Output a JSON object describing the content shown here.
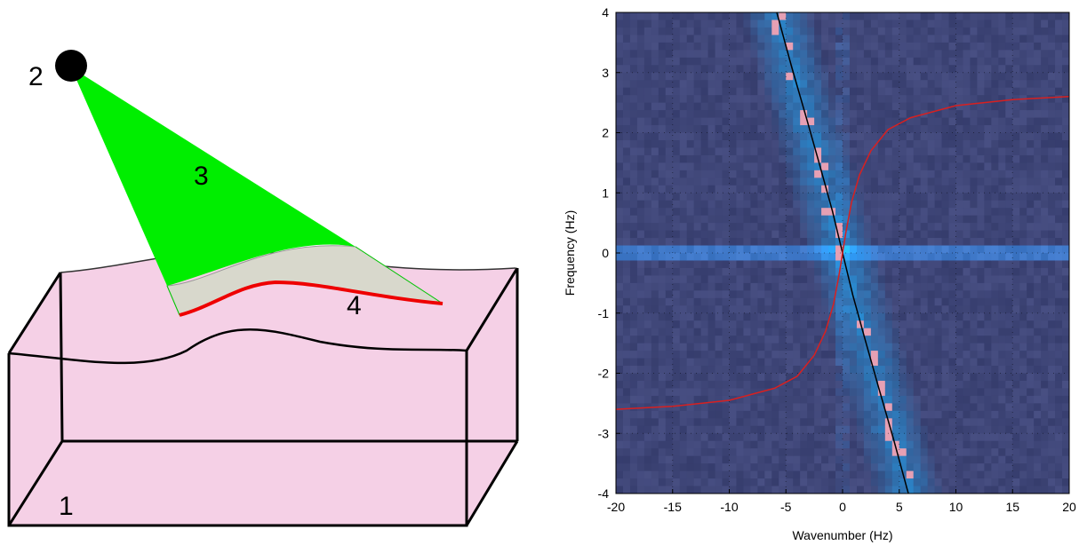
{
  "diagram": {
    "labels": {
      "block": "1",
      "light_source": "2",
      "light_sheet": "3",
      "profile_line": "4"
    },
    "colors": {
      "block_fill": "#f5d0e6",
      "light_sheet": "#00ee00",
      "lit_surface": "#d8d8cc",
      "profile": "#ee0000",
      "source": "#000000"
    }
  },
  "chart_data": {
    "type": "heatmap",
    "title": "",
    "xlabel": "Wavenumber (Hz)",
    "ylabel": "Frequency (Hz)",
    "xlim": [
      -20,
      20
    ],
    "ylim": [
      -4,
      4
    ],
    "xticks": [
      "-20",
      "-15",
      "-10",
      "-5",
      "0",
      "5",
      "10",
      "15",
      "20"
    ],
    "yticks": [
      "-4",
      "-3",
      "-2",
      "-1",
      "0",
      "1",
      "2",
      "3",
      "4"
    ],
    "grid": true,
    "colors": {
      "background": "#3f4678",
      "ridge": "#2a8fd6",
      "hot": "#e8a0b0",
      "black_curve": "#000000",
      "red_curve": "#d82020"
    },
    "curves": [
      {
        "color": "black",
        "x": [
          -5.8,
          -4.5,
          -3.2,
          -2.0,
          -0.9,
          0.0,
          0.9,
          2.0,
          3.2,
          4.5,
          5.8
        ],
        "y": [
          4.0,
          3.1,
          2.25,
          1.45,
          0.7,
          0.0,
          -0.7,
          -1.45,
          -2.25,
          -3.1,
          -4.0
        ]
      },
      {
        "color": "red",
        "x": [
          -20,
          -15,
          -10,
          -6,
          -4,
          -2.5,
          -1.5,
          -0.8,
          -0.3,
          0.0,
          0.3,
          0.8,
          1.5,
          2.5,
          4,
          6,
          10,
          15,
          20
        ],
        "y": [
          -2.6,
          -2.55,
          -2.45,
          -2.25,
          -2.05,
          -1.7,
          -1.3,
          -0.85,
          -0.35,
          0.0,
          0.35,
          0.85,
          1.3,
          1.7,
          2.05,
          2.25,
          2.45,
          2.55,
          2.6
        ]
      }
    ]
  }
}
